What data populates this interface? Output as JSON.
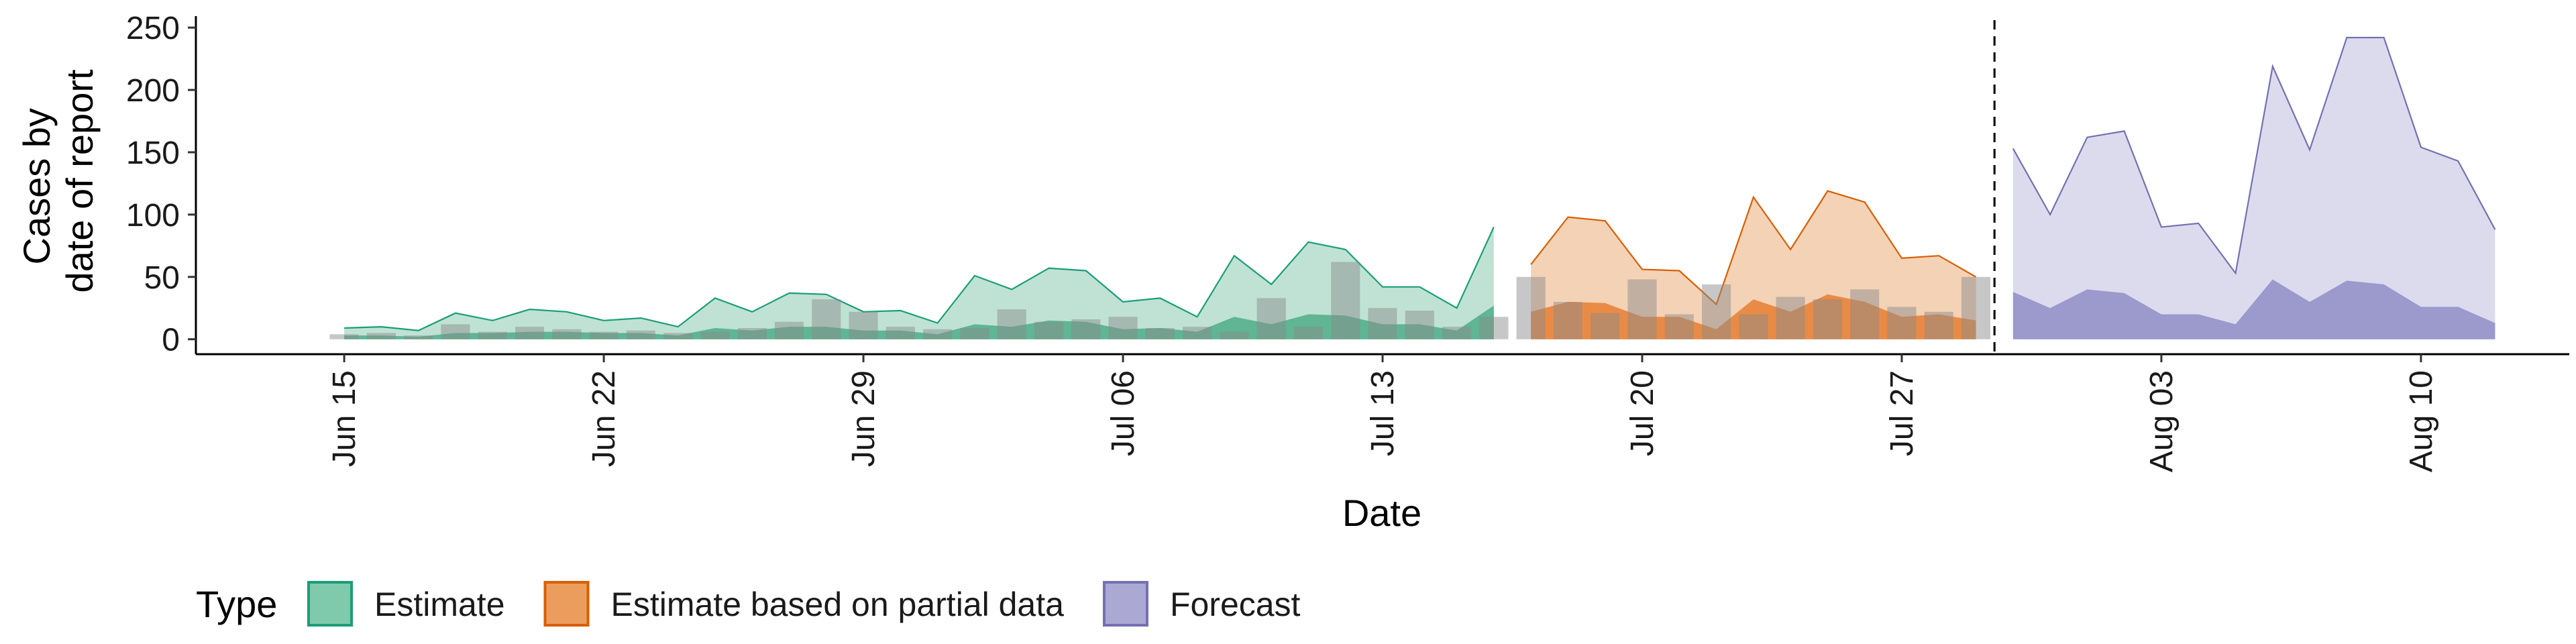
{
  "chart_data": {
    "type": "area",
    "xlabel": "Date",
    "ylabel": [
      "Cases by",
      "date of report"
    ],
    "ylim": [
      -12,
      256
    ],
    "y_ticks": [
      0,
      50,
      100,
      150,
      200,
      250
    ],
    "x_ticks": [
      {
        "date": "2020-06-15",
        "label": "Jun 15"
      },
      {
        "date": "2020-06-22",
        "label": "Jun 22"
      },
      {
        "date": "2020-06-29",
        "label": "Jun 29"
      },
      {
        "date": "2020-07-06",
        "label": "Jul 06"
      },
      {
        "date": "2020-07-13",
        "label": "Jul 13"
      },
      {
        "date": "2020-07-20",
        "label": "Jul 20"
      },
      {
        "date": "2020-07-27",
        "label": "Jul 27"
      },
      {
        "date": "2020-08-03",
        "label": "Aug 03"
      },
      {
        "date": "2020-08-10",
        "label": "Aug 10"
      }
    ],
    "xlim": [
      "2020-06-11",
      "2020-08-14"
    ],
    "forecast_date": "2020-07-29",
    "legend": {
      "title": "Type",
      "placement": "bottom-left",
      "items": [
        {
          "label": "Estimate",
          "fill": "#7fc9ac",
          "stroke": "#1b9e77"
        },
        {
          "label": "Estimate based on partial data",
          "fill": "#eb9d5e",
          "stroke": "#d95f02"
        },
        {
          "label": "Forecast",
          "fill": "#aba8d3",
          "stroke": "#7570b3"
        }
      ]
    },
    "series": [
      {
        "type": "Estimate",
        "color": "#1b9e77",
        "fill_outer": "#bfe2d5",
        "fill_inner": "#5fb594",
        "start": "2020-06-15",
        "upper": [
          9,
          10,
          7,
          21,
          15,
          24,
          22,
          15,
          17,
          10,
          33,
          22,
          37,
          36,
          22,
          23,
          13,
          51,
          40,
          57,
          55,
          30,
          33,
          18,
          67,
          44,
          78,
          72,
          42,
          42,
          25,
          90
        ],
        "lower": [
          3,
          3,
          2,
          5,
          5,
          6,
          6,
          5,
          5,
          3,
          9,
          7,
          10,
          10,
          7,
          7,
          4,
          12,
          10,
          15,
          14,
          8,
          9,
          6,
          18,
          12,
          20,
          19,
          12,
          12,
          7,
          27
        ]
      },
      {
        "type": "Estimate based on partial data",
        "color": "#d95f02",
        "fill_outer": "#f4d2b6",
        "fill_inner": "#e98b46",
        "start": "2020-07-17",
        "upper": [
          60,
          98,
          95,
          56,
          55,
          28,
          114,
          72,
          119,
          110,
          65,
          67,
          50
        ],
        "lower": [
          22,
          30,
          29,
          18,
          18,
          8,
          32,
          22,
          36,
          30,
          18,
          20,
          15
        ]
      },
      {
        "type": "Forecast",
        "color": "#7570b3",
        "fill_outer": "#dcdbee",
        "fill_inner": "#9c99cd",
        "start": "2020-07-30",
        "upper": [
          153,
          100,
          162,
          167,
          90,
          93,
          53,
          219,
          152,
          242,
          242,
          154,
          143,
          88
        ],
        "lower": [
          38,
          25,
          40,
          37,
          20,
          20,
          12,
          48,
          30,
          47,
          44,
          26,
          26,
          13
        ]
      }
    ],
    "observed_bars": {
      "start": "2020-06-15",
      "values": [
        4,
        5,
        3,
        12,
        6,
        10,
        8,
        6,
        7,
        5,
        6,
        9,
        14,
        32,
        22,
        10,
        8,
        9,
        24,
        14,
        16,
        18,
        9,
        10,
        6,
        33,
        10,
        62,
        25,
        23,
        10,
        18,
        50,
        30,
        21,
        48,
        20,
        44,
        20,
        34,
        32,
        40,
        26,
        22,
        50
      ]
    }
  }
}
